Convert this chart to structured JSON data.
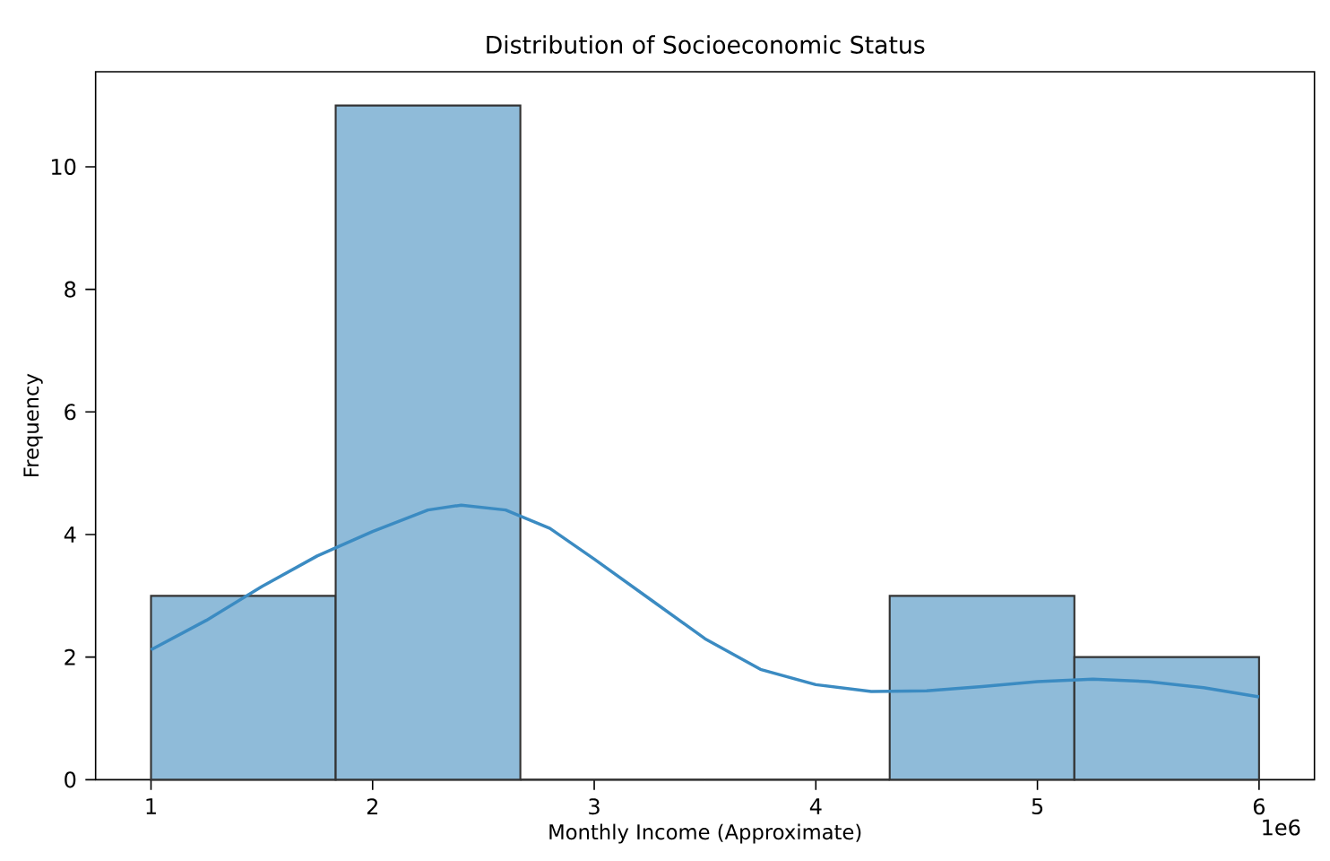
{
  "chart_data": {
    "type": "histogram",
    "title": "Distribution of Socioeconomic Status",
    "xlabel": "Monthly Income (Approximate)",
    "ylabel": "Frequency",
    "xlim": [
      0.75,
      6.25
    ],
    "ylim": [
      0,
      11.55
    ],
    "xticks": [
      1,
      2,
      3,
      4,
      5,
      6
    ],
    "yticks": [
      0,
      2,
      4,
      6,
      8,
      10
    ],
    "annotations": [
      "1e6"
    ],
    "series": [
      {
        "color": "#8fbbd9",
        "bins": [
          1,
          1.8333,
          2.6667,
          3.5,
          4.3333,
          5.1667,
          6
        ],
        "values": [
          3,
          11,
          0,
          0,
          3,
          2
        ]
      },
      {
        "type": "line",
        "color": "#3b8bc2",
        "x": [
          1,
          1.25,
          1.5,
          1.75,
          2,
          2.25,
          2.4,
          2.6,
          2.8,
          3,
          3.25,
          3.5,
          3.75,
          4,
          4.25,
          4.5,
          4.75,
          5,
          5.25,
          5.5,
          5.75,
          6
        ],
        "values": [
          2.12,
          2.6,
          3.15,
          3.65,
          4.05,
          4.4,
          4.48,
          4.4,
          4.1,
          3.6,
          2.95,
          2.3,
          1.8,
          1.55,
          1.44,
          1.45,
          1.52,
          1.6,
          1.64,
          1.6,
          1.5,
          1.35
        ]
      }
    ]
  }
}
